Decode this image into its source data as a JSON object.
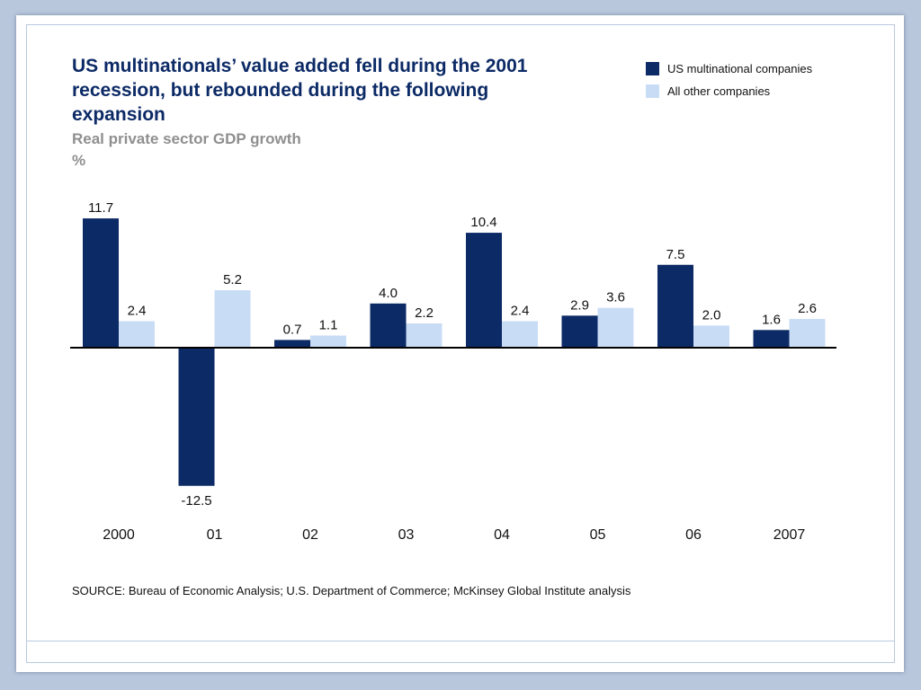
{
  "title": "US multinationals’ value added fell during the 2001 recession, but rebounded during the following expansion",
  "subtitle": "Real private sector GDP growth",
  "unit": "%",
  "source": "SOURCE: Bureau of Economic Analysis; U.S. Department of Commerce; McKinsey Global Institute analysis",
  "colors": {
    "us": "#0c2a66",
    "other": "#c9dcf6"
  },
  "legend": [
    {
      "label": "US multinational companies",
      "color": "#0c2a66"
    },
    {
      "label": "All other companies",
      "color": "#c9dcf6"
    }
  ],
  "chart_data": {
    "type": "bar",
    "categories": [
      "2000",
      "01",
      "02",
      "03",
      "04",
      "05",
      "06",
      "2007"
    ],
    "series": [
      {
        "name": "US multinational companies",
        "values": [
          11.7,
          -12.5,
          0.7,
          4.0,
          10.4,
          2.9,
          7.5,
          1.6
        ],
        "labels": [
          "11.7",
          "-12.5",
          "0.7",
          "4.0",
          "10.4",
          "2.9",
          "7.5",
          "1.6"
        ]
      },
      {
        "name": "All other companies",
        "values": [
          2.4,
          5.2,
          1.1,
          2.2,
          2.4,
          3.6,
          2.0,
          2.6
        ],
        "labels": [
          "2.4",
          "5.2",
          "1.1",
          "2.2",
          "2.4",
          "3.6",
          "2.0",
          "2.6"
        ]
      }
    ],
    "title": "US multinationals’ value added fell during the 2001 recession, but rebounded during the following expansion",
    "subtitle": "Real private sector GDP growth",
    "ylabel": "%",
    "grid": false,
    "legend_position": "top-right"
  }
}
